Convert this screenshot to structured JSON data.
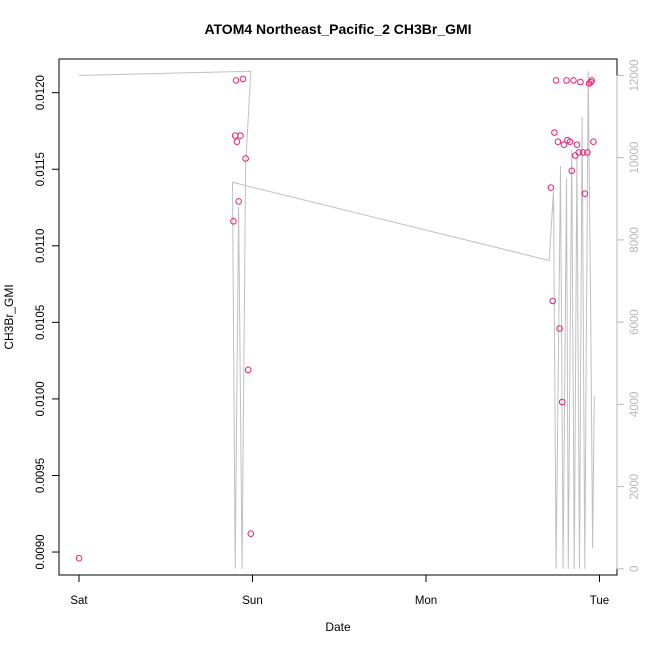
{
  "chart_data": {
    "type": "scatter",
    "title": "ATOM4 Northeast_Pacific_2 CH3Br_GMI",
    "xlabel": "Date",
    "ylabel": "CH3Br_GMI",
    "x_axis": {
      "type": "date",
      "ticks": [
        "Sat",
        "Sun",
        "Mon",
        "Tue"
      ],
      "range_days": [
        0,
        3.06
      ]
    },
    "left_axis": {
      "range": [
        0.00885,
        0.01222
      ],
      "ticks": [
        0.009,
        0.0095,
        0.01,
        0.0105,
        0.011,
        0.0115,
        0.012
      ],
      "tick_labels": [
        "0.0090",
        "0.0095",
        "0.0100",
        "0.0105",
        "0.0110",
        "0.0115",
        "0.0120"
      ]
    },
    "right_axis": {
      "range": [
        -150,
        12400
      ],
      "ticks": [
        0,
        2000,
        4000,
        6000,
        8000,
        10000,
        12000
      ],
      "tick_labels": [
        "0",
        "2000",
        "4000",
        "6000",
        "8000",
        "10000",
        "12000"
      ],
      "color": "#b8b8b8"
    },
    "series": [
      {
        "kind": "points",
        "axis": "left",
        "color": "#e8207a",
        "points": [
          [
            0.0,
            0.00896
          ],
          [
            0.89,
            0.01116
          ],
          [
            0.9,
            0.01172
          ],
          [
            0.91,
            0.01168
          ],
          [
            0.92,
            0.01129
          ],
          [
            0.93,
            0.01172
          ],
          [
            0.905,
            0.01208
          ],
          [
            0.945,
            0.01209
          ],
          [
            0.96,
            0.01157
          ],
          [
            0.975,
            0.01019
          ],
          [
            0.99,
            0.00912
          ],
          [
            2.72,
            0.01138
          ],
          [
            2.73,
            0.01064
          ],
          [
            2.74,
            0.01174
          ],
          [
            2.75,
            0.01208
          ],
          [
            2.76,
            0.01168
          ],
          [
            2.77,
            0.01046
          ],
          [
            2.785,
            0.00998
          ],
          [
            2.795,
            0.01166
          ],
          [
            2.81,
            0.01208
          ],
          [
            2.815,
            0.01169
          ],
          [
            2.83,
            0.01168
          ],
          [
            2.84,
            0.01149
          ],
          [
            2.85,
            0.01208
          ],
          [
            2.86,
            0.01159
          ],
          [
            2.87,
            0.01166
          ],
          [
            2.88,
            0.01161
          ],
          [
            2.89,
            0.01207
          ],
          [
            2.905,
            0.01161
          ],
          [
            2.915,
            0.01134
          ],
          [
            2.93,
            0.01161
          ],
          [
            2.94,
            0.01206
          ],
          [
            2.95,
            0.01207
          ],
          [
            2.955,
            0.01208
          ],
          [
            2.965,
            0.01168
          ]
        ]
      },
      {
        "kind": "line",
        "axis": "right",
        "color": "#c0c0c0",
        "points": [
          [
            0.0,
            12000
          ],
          [
            0.99,
            12100
          ],
          [
            0.96,
            9800
          ],
          [
            0.94,
            0
          ],
          [
            0.92,
            8800
          ],
          [
            0.9,
            0
          ],
          [
            0.885,
            9400
          ],
          [
            2.71,
            7500
          ],
          [
            2.735,
            9200
          ],
          [
            2.75,
            0
          ],
          [
            2.775,
            9800
          ],
          [
            2.79,
            0
          ],
          [
            2.81,
            9500
          ],
          [
            2.82,
            0
          ],
          [
            2.84,
            10200
          ],
          [
            2.855,
            0
          ],
          [
            2.87,
            10000
          ],
          [
            2.885,
            0
          ],
          [
            2.9,
            11000
          ],
          [
            2.915,
            0
          ],
          [
            2.935,
            12100
          ],
          [
            2.95,
            6000
          ],
          [
            2.96,
            500
          ],
          [
            2.97,
            4200
          ]
        ]
      }
    ]
  }
}
